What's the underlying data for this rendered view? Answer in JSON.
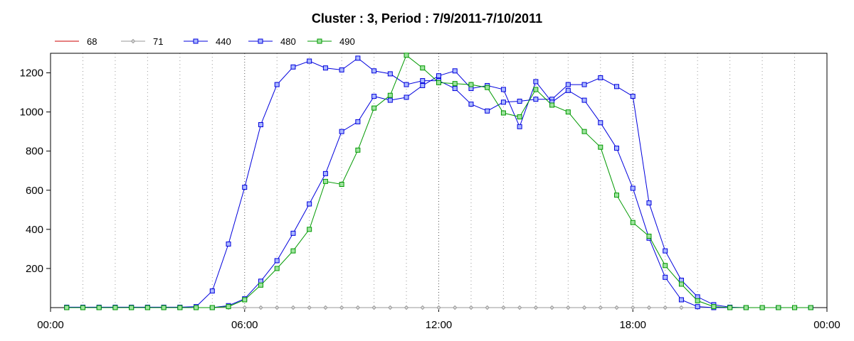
{
  "chart_data": {
    "type": "line",
    "title": "Cluster : 3, Period : 7/9/2011-7/10/2011",
    "xlabel": "",
    "ylabel": "",
    "x_range_hours": [
      0,
      24
    ],
    "ylim": [
      0,
      1300
    ],
    "x_ticks": [
      {
        "hour": 0,
        "label": "00:00"
      },
      {
        "hour": 6,
        "label": "06:00"
      },
      {
        "hour": 12,
        "label": "12:00"
      },
      {
        "hour": 18,
        "label": "18:00"
      },
      {
        "hour": 24,
        "label": "00:00"
      }
    ],
    "y_ticks": [
      200,
      400,
      600,
      800,
      1000,
      1200
    ],
    "grid": "dotted vertical every hour",
    "legend_position": "top-left",
    "x": [
      0.5,
      1,
      1.5,
      2,
      2.5,
      3,
      3.5,
      4,
      4.5,
      5,
      5.5,
      6,
      6.5,
      7,
      7.5,
      8,
      8.5,
      9,
      9.5,
      10,
      10.5,
      11,
      11.5,
      12,
      12.5,
      13,
      13.5,
      14,
      14.5,
      15,
      15.5,
      16,
      16.5,
      17,
      17.5,
      18,
      18.5,
      19,
      19.5,
      20,
      20.5,
      21,
      21.5,
      22,
      22.5,
      23,
      23.5
    ],
    "series": [
      {
        "name": "68",
        "color": "#cc0000",
        "marker": "none",
        "values": [
          0,
          0,
          0,
          0,
          0,
          0,
          0,
          0,
          0,
          0,
          0,
          0,
          0,
          0,
          0,
          0,
          0,
          0,
          0,
          0,
          0,
          0,
          0,
          0,
          0,
          0,
          0,
          0,
          0,
          0,
          0,
          0,
          0,
          0,
          0,
          0,
          0,
          0,
          0,
          0,
          0,
          0,
          0,
          0,
          0,
          0,
          0
        ]
      },
      {
        "name": "71",
        "color": "#999999",
        "marker": "diamond",
        "values": [
          0,
          0,
          0,
          0,
          0,
          0,
          0,
          0,
          0,
          0,
          0,
          0,
          0,
          0,
          0,
          0,
          0,
          0,
          0,
          0,
          0,
          0,
          0,
          0,
          0,
          0,
          0,
          0,
          0,
          0,
          0,
          0,
          0,
          0,
          0,
          0,
          0,
          0,
          0,
          0,
          0,
          0,
          0,
          0,
          0,
          0,
          0
        ]
      },
      {
        "name": "440",
        "color": "#0000dd",
        "marker": "square",
        "values": [
          2,
          2,
          2,
          2,
          2,
          2,
          2,
          2,
          5,
          85,
          325,
          615,
          935,
          1140,
          1230,
          1260,
          1225,
          1215,
          1275,
          1210,
          1195,
          1140,
          1160,
          1160,
          1120,
          1040,
          1005,
          1050,
          1055,
          1065,
          1065,
          1140,
          1140,
          1175,
          1130,
          1080,
          535,
          290,
          140,
          55,
          15,
          2,
          0,
          0,
          0,
          0,
          0
        ]
      },
      {
        "name": "480",
        "color": "#0000dd",
        "marker": "square",
        "values": [
          0,
          0,
          0,
          0,
          0,
          0,
          0,
          0,
          0,
          0,
          10,
          45,
          135,
          240,
          380,
          530,
          685,
          900,
          950,
          1080,
          1060,
          1075,
          1135,
          1185,
          1210,
          1120,
          1135,
          1115,
          925,
          1155,
          1050,
          1110,
          1060,
          945,
          815,
          610,
          355,
          155,
          40,
          5,
          0,
          0,
          0,
          0,
          0,
          0,
          0
        ]
      },
      {
        "name": "490",
        "color": "#009900",
        "marker": "square",
        "values": [
          0,
          0,
          0,
          0,
          0,
          0,
          0,
          0,
          0,
          0,
          5,
          40,
          115,
          200,
          290,
          400,
          645,
          630,
          805,
          1020,
          1085,
          1290,
          1225,
          1150,
          1145,
          1140,
          1125,
          995,
          975,
          1115,
          1035,
          1000,
          900,
          820,
          575,
          435,
          365,
          215,
          120,
          35,
          5,
          0,
          0,
          0,
          0,
          0,
          0
        ]
      }
    ]
  }
}
